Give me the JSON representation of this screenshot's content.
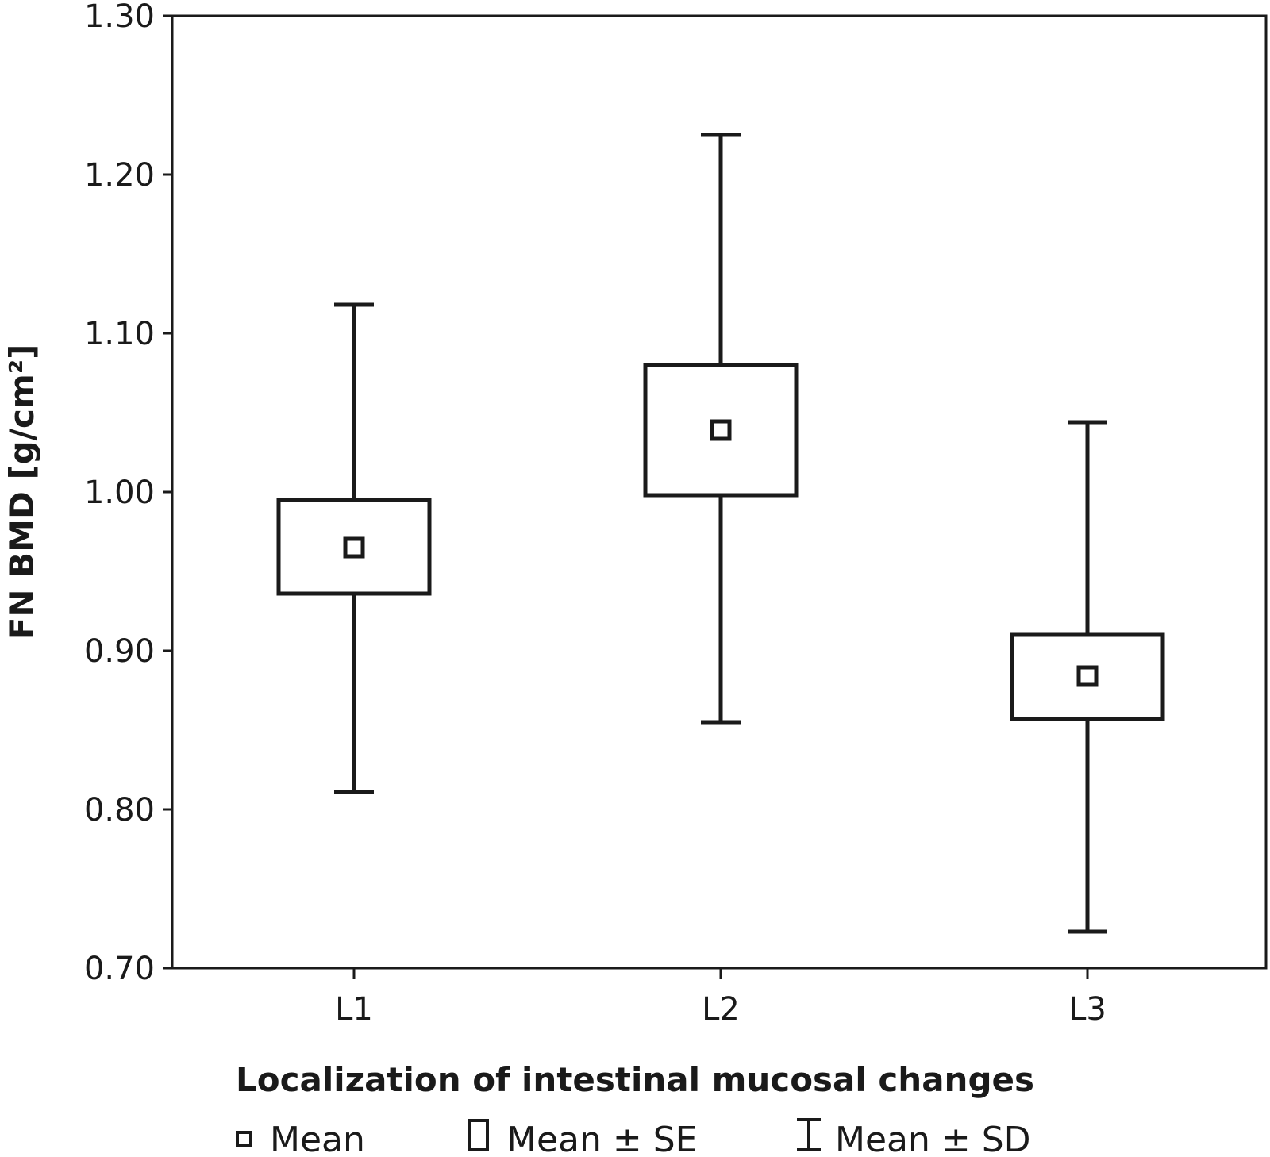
{
  "chart_data": {
    "type": "box",
    "xlabel": "Localization of intestinal mucosal changes",
    "ylabel": "FN BMD [g/cm²]",
    "categories": [
      "L1",
      "L2",
      "L3"
    ],
    "ylim": [
      0.7,
      1.3
    ],
    "yticks": [
      "0.70",
      "0.80",
      "0.90",
      "1.00",
      "1.10",
      "1.20",
      "1.30"
    ],
    "grid": false,
    "series": [
      {
        "category": "L1",
        "mean": 0.965,
        "se_low": 0.936,
        "se_high": 0.995,
        "sd_low": 0.811,
        "sd_high": 1.118
      },
      {
        "category": "L2",
        "mean": 1.039,
        "se_low": 0.998,
        "se_high": 1.08,
        "sd_low": 0.855,
        "sd_high": 1.225
      },
      {
        "category": "L3",
        "mean": 0.884,
        "se_low": 0.857,
        "se_high": 0.91,
        "sd_low": 0.723,
        "sd_high": 1.044
      }
    ],
    "legend": {
      "placement": "bottom",
      "items": [
        {
          "symbol": "small-square",
          "label": "Mean"
        },
        {
          "symbol": "box",
          "label": "Mean ± SE"
        },
        {
          "symbol": "whisker",
          "label": "Mean ± SD"
        }
      ]
    },
    "colors": {
      "ink": "#1a1a1a",
      "background": "#ffffff"
    }
  }
}
